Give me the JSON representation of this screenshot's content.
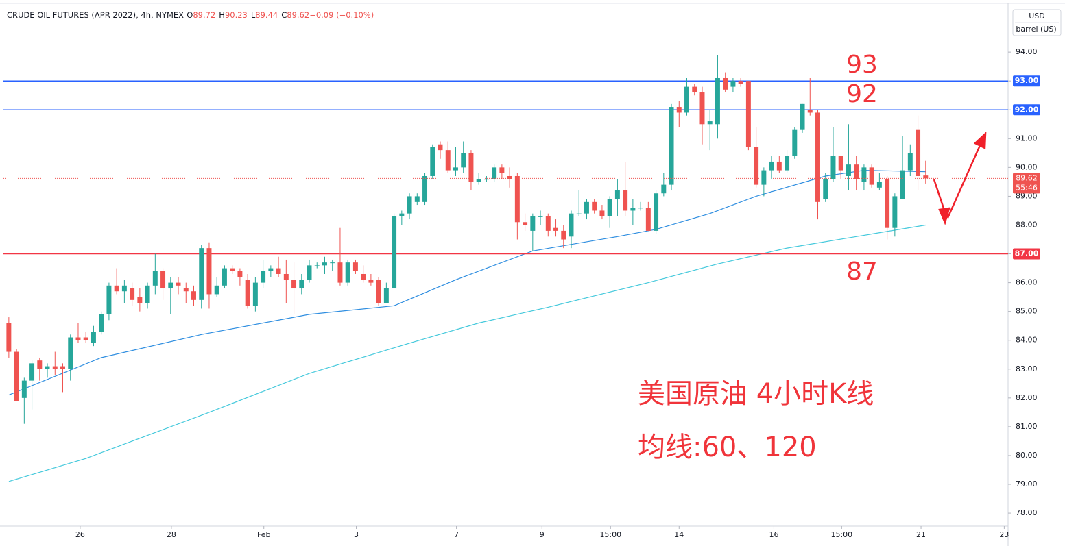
{
  "chart_data": {
    "type": "candlestick",
    "title": "CRUDE OIL FUTURES (APR 2022), 4h, NYMEX",
    "legend": [
      {
        "key": "O",
        "value": "89.72"
      },
      {
        "key": "H",
        "value": "90.23"
      },
      {
        "key": "L",
        "value": "89.44"
      },
      {
        "key": "C",
        "value": "89.62"
      },
      {
        "key": "",
        "value": "−0.09 (−0.10%)"
      }
    ],
    "currency": "USD",
    "unit": "barrel (US)",
    "up_color": "#26a69a",
    "down_color": "#ef5350",
    "ohlc": [
      [
        84.6,
        84.8,
        83.4,
        83.6
      ],
      [
        83.6,
        83.7,
        81.9,
        81.9
      ],
      [
        82.0,
        82.7,
        81.1,
        82.6
      ],
      [
        82.6,
        83.3,
        81.6,
        83.2
      ],
      [
        83.3,
        83.4,
        82.6,
        83.0
      ],
      [
        83.0,
        83.2,
        82.7,
        83.1
      ],
      [
        83.1,
        83.6,
        82.8,
        83.0
      ],
      [
        83.1,
        83.2,
        82.2,
        83.0
      ],
      [
        83.0,
        84.2,
        82.6,
        84.1
      ],
      [
        84.1,
        84.6,
        83.9,
        84.0
      ],
      [
        84.1,
        84.3,
        83.9,
        84.0
      ],
      [
        83.9,
        84.5,
        83.8,
        84.3
      ],
      [
        84.3,
        85.0,
        84.2,
        84.9
      ],
      [
        84.9,
        86.0,
        84.7,
        85.9
      ],
      [
        85.9,
        86.5,
        85.6,
        85.7
      ],
      [
        85.7,
        86.1,
        85.3,
        85.9
      ],
      [
        85.8,
        86.0,
        85.2,
        85.4
      ],
      [
        85.5,
        85.8,
        85.0,
        85.3
      ],
      [
        85.3,
        86.0,
        85.1,
        85.9
      ],
      [
        85.9,
        87.0,
        85.6,
        86.4
      ],
      [
        86.4,
        86.5,
        85.4,
        85.8
      ],
      [
        85.8,
        86.2,
        84.9,
        86.0
      ],
      [
        86.0,
        86.2,
        85.6,
        85.9
      ],
      [
        85.8,
        86.0,
        85.3,
        85.7
      ],
      [
        85.7,
        85.9,
        85.2,
        85.4
      ],
      [
        85.4,
        87.3,
        85.1,
        87.2
      ],
      [
        87.2,
        87.4,
        85.1,
        85.6
      ],
      [
        85.6,
        86.2,
        85.5,
        85.9
      ],
      [
        85.9,
        86.6,
        85.8,
        86.5
      ],
      [
        86.5,
        86.6,
        86.3,
        86.4
      ],
      [
        86.4,
        86.5,
        85.9,
        86.2
      ],
      [
        86.1,
        86.3,
        85.1,
        85.2
      ],
      [
        85.2,
        86.2,
        85.0,
        86.0
      ],
      [
        86.0,
        86.8,
        85.8,
        86.4
      ],
      [
        86.4,
        86.6,
        86.2,
        86.5
      ],
      [
        86.5,
        86.9,
        86.2,
        86.3
      ],
      [
        86.3,
        86.8,
        85.3,
        86.1
      ],
      [
        86.1,
        86.7,
        84.9,
        85.8
      ],
      [
        85.8,
        86.3,
        85.6,
        86.1
      ],
      [
        86.1,
        86.8,
        86.0,
        86.6
      ],
      [
        86.6,
        86.7,
        86.5,
        86.6
      ],
      [
        86.6,
        86.9,
        86.3,
        86.7
      ],
      [
        86.7,
        86.8,
        86.4,
        86.7
      ],
      [
        86.7,
        87.9,
        85.9,
        86.0
      ],
      [
        86.0,
        86.8,
        85.9,
        86.7
      ],
      [
        86.7,
        86.8,
        86.3,
        86.4
      ],
      [
        86.3,
        86.6,
        86.0,
        86.1
      ],
      [
        86.1,
        86.3,
        85.9,
        86.0
      ],
      [
        86.1,
        86.2,
        85.2,
        85.3
      ],
      [
        85.3,
        86.0,
        85.3,
        85.8
      ],
      [
        85.8,
        88.4,
        85.8,
        88.3
      ],
      [
        88.3,
        88.5,
        88.0,
        88.4
      ],
      [
        88.4,
        89.1,
        88.2,
        89.0
      ],
      [
        88.8,
        89.1,
        88.7,
        89.0
      ],
      [
        88.8,
        89.8,
        88.7,
        89.7
      ],
      [
        89.7,
        90.8,
        89.6,
        90.7
      ],
      [
        90.8,
        90.9,
        90.3,
        90.6
      ],
      [
        90.6,
        90.9,
        89.8,
        89.9
      ],
      [
        89.9,
        90.7,
        89.7,
        90.0
      ],
      [
        90.0,
        90.9,
        89.8,
        90.5
      ],
      [
        90.5,
        90.6,
        89.2,
        89.5
      ],
      [
        89.5,
        89.8,
        89.4,
        89.6
      ],
      [
        89.6,
        89.7,
        89.5,
        89.6
      ],
      [
        89.6,
        90.1,
        89.5,
        90.0
      ],
      [
        90.0,
        90.1,
        89.6,
        89.8
      ],
      [
        89.7,
        90.0,
        89.3,
        89.6
      ],
      [
        89.7,
        89.8,
        87.5,
        88.1
      ],
      [
        88.1,
        88.4,
        87.8,
        88.0
      ],
      [
        87.8,
        88.4,
        87.1,
        88.3
      ],
      [
        88.3,
        88.5,
        88.0,
        88.3
      ],
      [
        88.3,
        88.4,
        87.6,
        87.8
      ],
      [
        87.9,
        88.2,
        87.6,
        87.8
      ],
      [
        87.8,
        88.0,
        87.2,
        87.5
      ],
      [
        87.6,
        88.5,
        87.2,
        88.4
      ],
      [
        88.4,
        89.2,
        88.3,
        88.4
      ],
      [
        88.4,
        88.9,
        88.2,
        88.8
      ],
      [
        88.8,
        88.9,
        88.4,
        88.5
      ],
      [
        88.5,
        88.7,
        88.2,
        88.3
      ],
      [
        88.3,
        89.0,
        87.9,
        88.9
      ],
      [
        88.9,
        89.6,
        88.3,
        89.2
      ],
      [
        89.2,
        90.2,
        88.3,
        88.5
      ],
      [
        88.5,
        88.9,
        88.0,
        88.6
      ],
      [
        88.6,
        88.8,
        88.5,
        88.6
      ],
      [
        88.6,
        88.8,
        87.8,
        87.8
      ],
      [
        87.8,
        89.2,
        87.7,
        89.1
      ],
      [
        89.1,
        89.8,
        89.0,
        89.4
      ],
      [
        89.4,
        92.2,
        89.2,
        92.1
      ],
      [
        92.1,
        92.3,
        91.4,
        91.9
      ],
      [
        91.9,
        93.1,
        91.8,
        92.8
      ],
      [
        92.8,
        92.9,
        92.5,
        92.6
      ],
      [
        92.6,
        92.8,
        90.8,
        91.5
      ],
      [
        91.5,
        92.0,
        90.6,
        91.6
      ],
      [
        91.5,
        93.9,
        91.0,
        93.1
      ],
      [
        93.1,
        93.3,
        92.6,
        92.7
      ],
      [
        92.8,
        93.1,
        92.6,
        93.0
      ],
      [
        93.0,
        93.1,
        92.8,
        92.9
      ],
      [
        93.0,
        93.0,
        90.6,
        90.7
      ],
      [
        90.7,
        91.4,
        89.3,
        89.4
      ],
      [
        89.4,
        90.0,
        89.0,
        89.9
      ],
      [
        89.9,
        90.4,
        89.6,
        90.2
      ],
      [
        90.2,
        90.4,
        89.8,
        89.9
      ],
      [
        89.9,
        90.6,
        89.8,
        90.4
      ],
      [
        90.4,
        91.4,
        90.3,
        91.3
      ],
      [
        91.3,
        92.2,
        91.2,
        92.2
      ],
      [
        92.0,
        93.1,
        91.8,
        91.9
      ],
      [
        91.9,
        92.0,
        88.2,
        88.8
      ],
      [
        88.9,
        89.8,
        88.8,
        89.6
      ],
      [
        89.6,
        91.4,
        89.5,
        90.4
      ],
      [
        90.4,
        90.4,
        89.6,
        89.9
      ],
      [
        89.7,
        91.5,
        89.2,
        90.1
      ],
      [
        90.1,
        90.4,
        89.2,
        89.6
      ],
      [
        89.5,
        90.1,
        89.2,
        90.0
      ],
      [
        90.0,
        90.1,
        89.3,
        89.4
      ],
      [
        89.3,
        89.8,
        89.2,
        89.5
      ],
      [
        89.6,
        89.7,
        87.5,
        87.9
      ],
      [
        87.9,
        89.1,
        87.6,
        89.0
      ],
      [
        88.9,
        91.1,
        88.9,
        89.9
      ],
      [
        89.9,
        90.8,
        89.7,
        90.5
      ],
      [
        91.3,
        91.8,
        89.2,
        89.7
      ],
      [
        89.72,
        90.23,
        89.44,
        89.62
      ]
    ],
    "series": [
      {
        "color": "#2f8ee0",
        "x": [
          0,
          12,
          25,
          39,
          50,
          58,
          68,
          79,
          84,
          91,
          97,
          106,
          111,
          119
        ],
        "values": [
          82.1,
          83.4,
          84.2,
          84.9,
          85.2,
          86.1,
          87.1,
          87.6,
          87.85,
          88.4,
          89.0,
          89.7,
          89.9,
          89.85
        ]
      },
      {
        "color": "#45c9dc",
        "x": [
          0,
          10,
          26,
          39,
          52,
          61,
          70,
          83,
          92,
          101,
          110,
          119
        ],
        "values": [
          79.1,
          79.9,
          81.5,
          82.85,
          83.9,
          84.6,
          85.15,
          86.0,
          86.65,
          87.2,
          87.6,
          88.0
        ]
      }
    ],
    "xlim": [
      -0.7,
      129.7
    ],
    "xticks": [
      {
        "value": 9.26,
        "label": "26"
      },
      {
        "value": 21.1,
        "label": "28"
      },
      {
        "value": 33.1,
        "label": "Feb"
      },
      {
        "value": 45.1,
        "label": "3"
      },
      {
        "value": 58.1,
        "label": "7"
      },
      {
        "value": 69.2,
        "label": "9"
      },
      {
        "value": 78.1,
        "label": "15:00"
      },
      {
        "value": 87.0,
        "label": "14"
      },
      {
        "value": 99.3,
        "label": "16"
      },
      {
        "value": 108.1,
        "label": "15:00"
      },
      {
        "value": 118.4,
        "label": "21"
      },
      {
        "value": 129.2,
        "label": "23"
      }
    ],
    "ylim": [
      77.55,
      95.62
    ],
    "yticks": [
      {
        "value": 78,
        "label": "78.00"
      },
      {
        "value": 79,
        "label": "79.00"
      },
      {
        "value": 80,
        "label": "80.00"
      },
      {
        "value": 81,
        "label": "81.00"
      },
      {
        "value": 82,
        "label": "82.00"
      },
      {
        "value": 83,
        "label": "83.00"
      },
      {
        "value": 84,
        "label": "84.00"
      },
      {
        "value": 85,
        "label": "85.00"
      },
      {
        "value": 86,
        "label": "86.00"
      },
      {
        "value": 87,
        "label": "87.00"
      },
      {
        "value": 88,
        "label": "88.00"
      },
      {
        "value": 89,
        "label": "89.00"
      },
      {
        "value": 90,
        "label": "90.00"
      },
      {
        "value": 91,
        "label": "91.00"
      },
      {
        "value": 92,
        "label": "92.00"
      },
      {
        "value": 93,
        "label": "93.00"
      },
      {
        "value": 94,
        "label": "94.00"
      }
    ],
    "levels": [
      {
        "value": 93,
        "label": "93.00",
        "color": "#2962ff"
      },
      {
        "value": 92,
        "label": "92.00",
        "color": "#2962ff"
      },
      {
        "value": 87,
        "label": "87.00",
        "color": "#f23645"
      }
    ],
    "last_price": 89.62,
    "countdown": "55:46",
    "annotations": [
      "93",
      "92",
      "87",
      "美国原油 4小时K线",
      "均线:60、120"
    ]
  }
}
